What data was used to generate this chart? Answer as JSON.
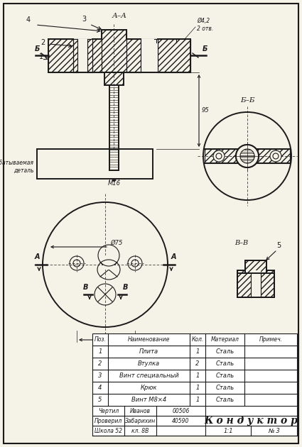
{
  "bg_color": "#f5f2e8",
  "col": "#1a1a1a",
  "white": "#ffffff",
  "table": {
    "headers": [
      "Поз.",
      "Наименование",
      "Кол.",
      "Материал",
      "Примеч."
    ],
    "rows": [
      [
        "1",
        "Плита",
        "1",
        "Сталь",
        ""
      ],
      [
        "2",
        "Втулка",
        "2",
        "Сталь",
        ""
      ],
      [
        "3",
        "Винт специальный",
        "1",
        "Сталь",
        ""
      ],
      [
        "4",
        "Крюк",
        "1",
        "Сталь",
        ""
      ],
      [
        "5",
        "Винт М8×4",
        "1",
        "Сталь",
        ""
      ]
    ],
    "footer_left": [
      [
        "Чертил",
        "Иванов",
        "00506"
      ],
      [
        "Проверил",
        "Забарихин",
        "40590"
      ],
      [
        "Школа 52",
        "кл. 8В",
        ""
      ]
    ],
    "title": "К о н д у к т о р",
    "scale": "1:1",
    "sheet": "№ 3"
  }
}
